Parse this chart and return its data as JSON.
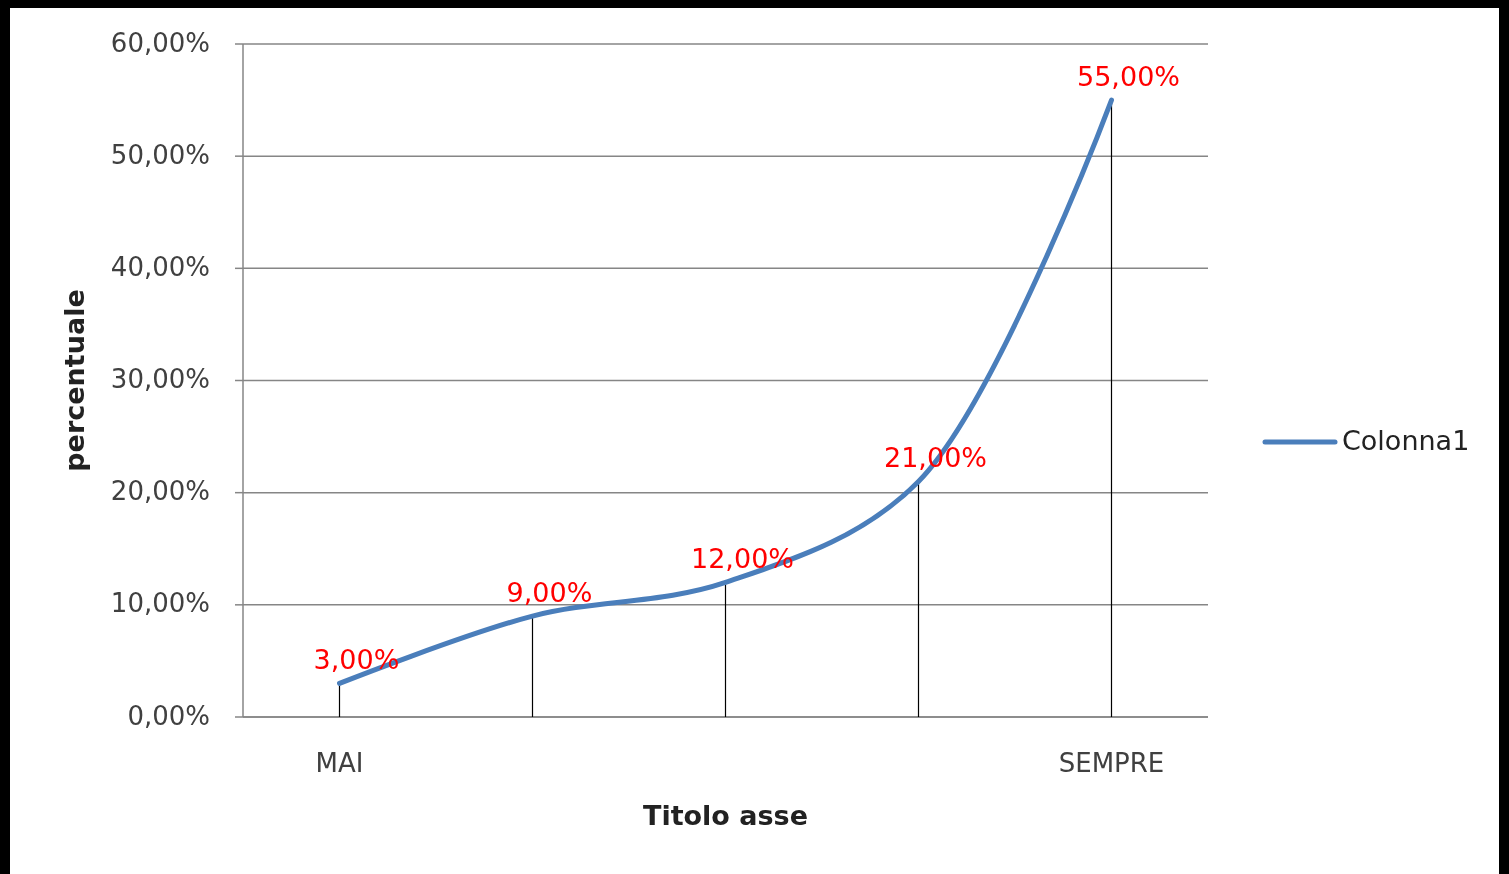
{
  "chart_data": {
    "type": "line",
    "xlabel": "Titolo asse",
    "ylabel": "percentuale",
    "categories": [
      "MAI",
      null,
      null,
      null,
      "SEMPRE"
    ],
    "series": [
      {
        "name": "Colonna1",
        "color": "#4a7ebb",
        "values": [
          3,
          9,
          12,
          21,
          55
        ],
        "value_labels": [
          "3,00%",
          "9,00%",
          "12,00%",
          "21,00%",
          "55,00%"
        ]
      }
    ],
    "ylim": [
      0,
      60
    ],
    "yticks": [
      {
        "value": 0,
        "label": "0,00%"
      },
      {
        "value": 10,
        "label": "10,00%"
      },
      {
        "value": 20,
        "label": "20,00%"
      },
      {
        "value": 30,
        "label": "30,00%"
      },
      {
        "value": 40,
        "label": "40,00%"
      },
      {
        "value": 50,
        "label": "50,00%"
      },
      {
        "value": 60,
        "label": "60,00%"
      }
    ],
    "grid": "y",
    "legend": "right",
    "marker": "none"
  }
}
